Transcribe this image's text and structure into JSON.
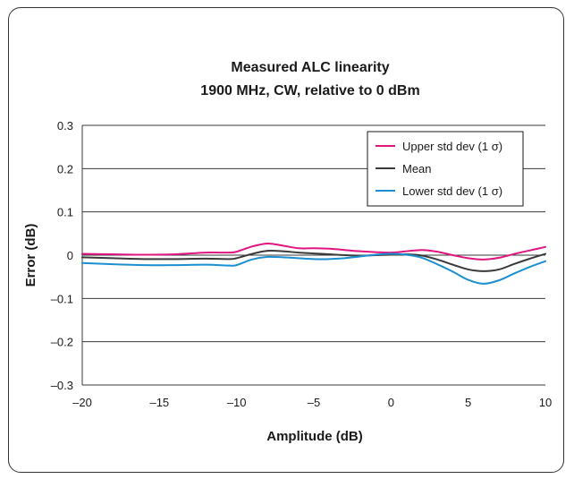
{
  "chart_data": {
    "type": "line",
    "title_line1": "Measured ALC linearity",
    "title_line2": "1900 MHz, CW, relative to 0 dBm",
    "xlabel": "Amplitude (dB)",
    "ylabel": "Error (dB)",
    "xlim": [
      -20,
      10
    ],
    "ylim": [
      -0.3,
      0.3
    ],
    "x_ticks": [
      -20,
      -15,
      -10,
      -5,
      0,
      5,
      10
    ],
    "x_tick_labels": [
      "–20",
      "–15",
      "–10",
      "–5",
      "0",
      "5",
      "10"
    ],
    "y_ticks": [
      0.3,
      0.2,
      0.1,
      0,
      -0.1,
      -0.2,
      -0.3
    ],
    "y_tick_labels": [
      "0.3",
      "0.2",
      "0.1",
      "0",
      "–0.1",
      "–0.2",
      "–0.3"
    ],
    "grid": "horizontal",
    "legend_position": "top-right",
    "series": [
      {
        "name": "Upper std dev (1 σ)",
        "color": "#e0157f",
        "x": [
          -20,
          -18,
          -16,
          -14,
          -12,
          -10.5,
          -10,
          -9,
          -8,
          -7,
          -6,
          -5,
          -4,
          -3,
          -2,
          -1,
          0,
          1,
          2,
          3,
          4,
          5,
          6,
          7,
          8,
          9,
          10
        ],
        "y": [
          0.003,
          0.002,
          0.001,
          0.002,
          0.006,
          0.006,
          0.008,
          0.02,
          0.027,
          0.022,
          0.016,
          0.016,
          0.015,
          0.012,
          0.009,
          0.007,
          0.006,
          0.009,
          0.012,
          0.008,
          0.0,
          -0.007,
          -0.01,
          -0.006,
          0.003,
          0.011,
          0.019
        ]
      },
      {
        "name": "Mean",
        "color": "#3a3a3a",
        "x": [
          -20,
          -18,
          -16,
          -14,
          -12,
          -10.5,
          -10,
          -9,
          -8,
          -7,
          -6,
          -5,
          -4,
          -3,
          -2,
          -1,
          0,
          1,
          2,
          3,
          4,
          5,
          6,
          7,
          8,
          9,
          10
        ],
        "y": [
          -0.005,
          -0.007,
          -0.009,
          -0.009,
          -0.008,
          -0.009,
          -0.007,
          0.003,
          0.01,
          0.009,
          0.006,
          0.004,
          0.002,
          0.0,
          -0.001,
          0.0,
          0.001,
          0.002,
          -0.001,
          -0.01,
          -0.022,
          -0.033,
          -0.037,
          -0.033,
          -0.02,
          -0.008,
          0.003
        ]
      },
      {
        "name": "Lower std dev (1 σ)",
        "color": "#1b8fd0",
        "x": [
          -20,
          -18,
          -16,
          -14,
          -12,
          -10.5,
          -10,
          -9,
          -8,
          -7,
          -6,
          -5,
          -4,
          -3,
          -2,
          -1,
          0,
          1,
          2,
          3,
          4,
          5,
          6,
          7,
          8,
          9,
          10
        ],
        "y": [
          -0.018,
          -0.021,
          -0.023,
          -0.023,
          -0.022,
          -0.024,
          -0.023,
          -0.01,
          -0.004,
          -0.005,
          -0.007,
          -0.009,
          -0.009,
          -0.007,
          -0.003,
          0.001,
          0.003,
          0.001,
          -0.006,
          -0.021,
          -0.038,
          -0.057,
          -0.066,
          -0.058,
          -0.042,
          -0.027,
          -0.014
        ]
      }
    ]
  }
}
